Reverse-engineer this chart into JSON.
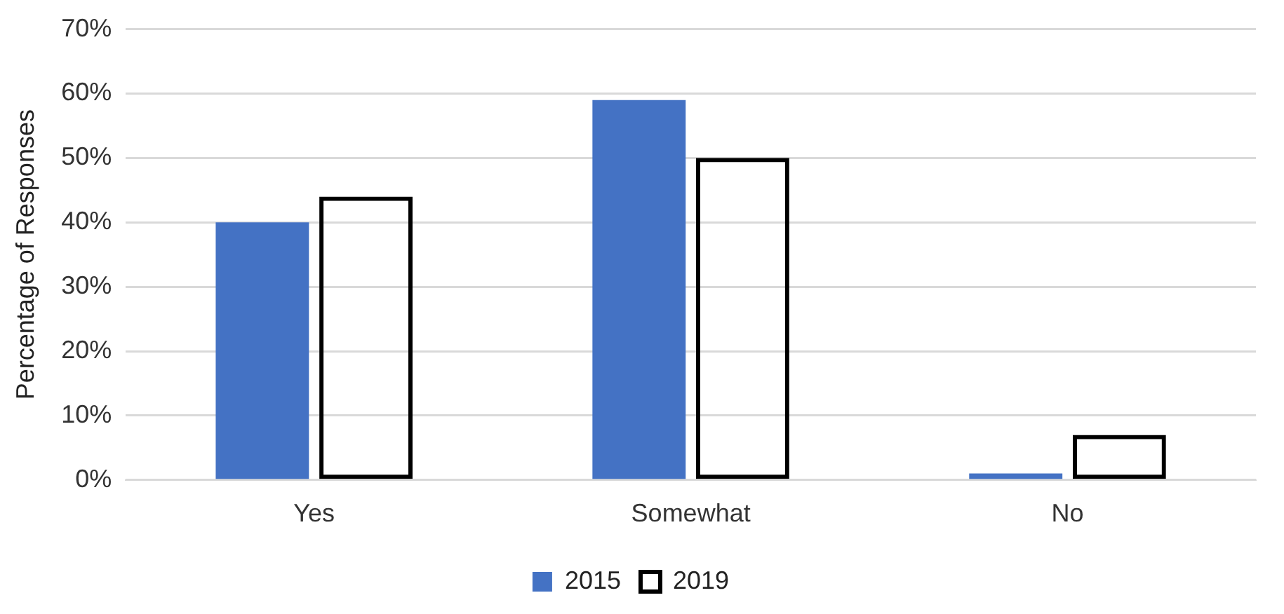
{
  "chart_data": {
    "type": "bar",
    "ylabel": "Percentage of Responses",
    "categories": [
      "Yes",
      "Somewhat",
      "No"
    ],
    "series": [
      {
        "name": "2015",
        "color": "#4472c4",
        "values": [
          40,
          59,
          1
        ]
      },
      {
        "name": "2019",
        "color": "#000000",
        "values": [
          44,
          50,
          7
        ]
      }
    ],
    "ylim": [
      0,
      70
    ],
    "yticks": [
      {
        "value": 0,
        "label": "0%"
      },
      {
        "value": 10,
        "label": "10%"
      },
      {
        "value": 20,
        "label": "20%"
      },
      {
        "value": 30,
        "label": "30%"
      },
      {
        "value": 40,
        "label": "40%"
      },
      {
        "value": 50,
        "label": "50%"
      },
      {
        "value": 60,
        "label": "60%"
      },
      {
        "value": 70,
        "label": "70%"
      }
    ],
    "grid": "y",
    "legend": "bottom"
  }
}
